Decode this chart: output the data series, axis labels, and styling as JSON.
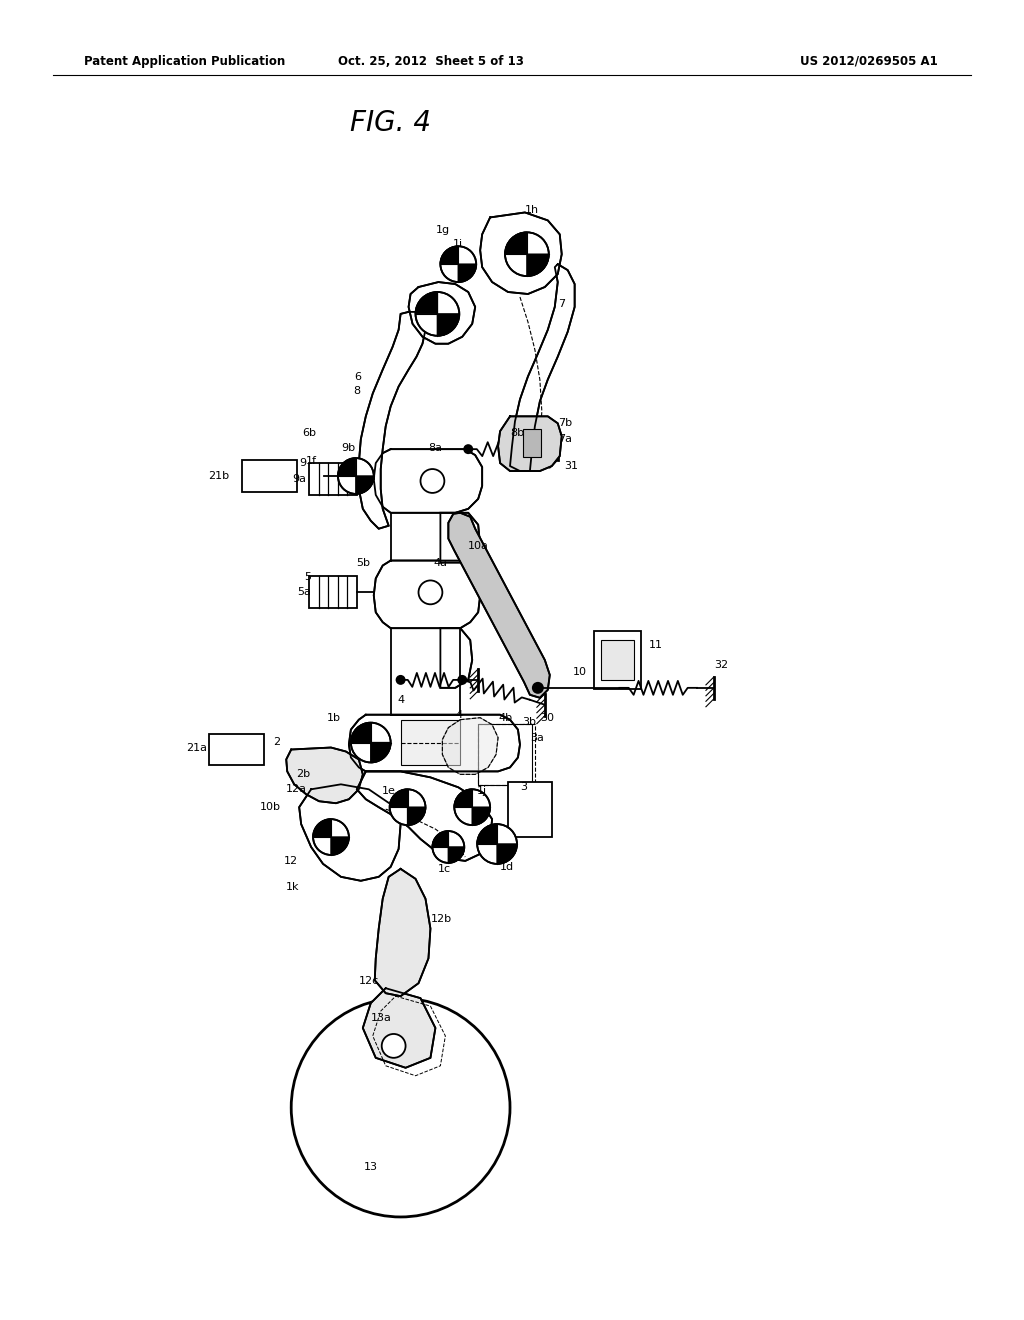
{
  "bg_color": "#ffffff",
  "line_color": "#000000",
  "header_left": "Patent Application Publication",
  "header_center": "Oct. 25, 2012  Sheet 5 of 13",
  "header_right": "US 2012/0269505 A1",
  "fig_title": "FIG. 4"
}
